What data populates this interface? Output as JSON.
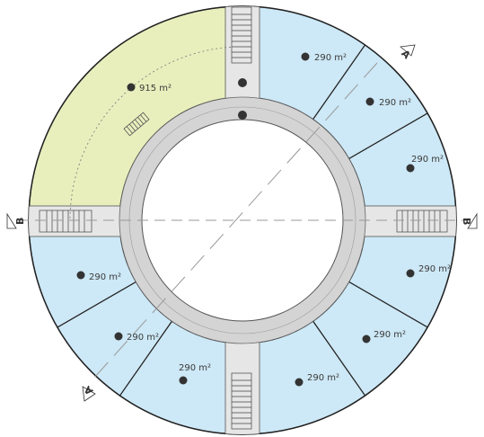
{
  "units": [
    {
      "id": "nw-large",
      "label": "915 m²",
      "fill": "#e8efbd"
    },
    {
      "id": "ne-1",
      "label": "290 m²",
      "fill": "#cde8f6"
    },
    {
      "id": "ne-2",
      "label": "290 m²",
      "fill": "#cde8f6"
    },
    {
      "id": "ne-3",
      "label": "290 m²",
      "fill": "#cde8f6"
    },
    {
      "id": "se-1",
      "label": "290 m²",
      "fill": "#cde8f6"
    },
    {
      "id": "se-2",
      "label": "290 m²",
      "fill": "#cde8f6"
    },
    {
      "id": "se-3",
      "label": "290 m²",
      "fill": "#cde8f6"
    },
    {
      "id": "sw-1",
      "label": "290 m²",
      "fill": "#cde8f6"
    },
    {
      "id": "sw-2",
      "label": "290 m²",
      "fill": "#cde8f6"
    },
    {
      "id": "sw-3",
      "label": "290 m²",
      "fill": "#cde8f6"
    }
  ],
  "sections": [
    {
      "id": "section-a-top",
      "label": "A"
    },
    {
      "id": "section-a-bottom",
      "label": "A"
    },
    {
      "id": "section-b-left",
      "label": "B"
    },
    {
      "id": "section-b-right",
      "label": "B"
    }
  ],
  "colors": {
    "corridor": "#d4d4d4",
    "core": "#e6e6e6",
    "atrium": "#ffffff",
    "outline": "#222222",
    "section_line": "#9a9a9a"
  }
}
